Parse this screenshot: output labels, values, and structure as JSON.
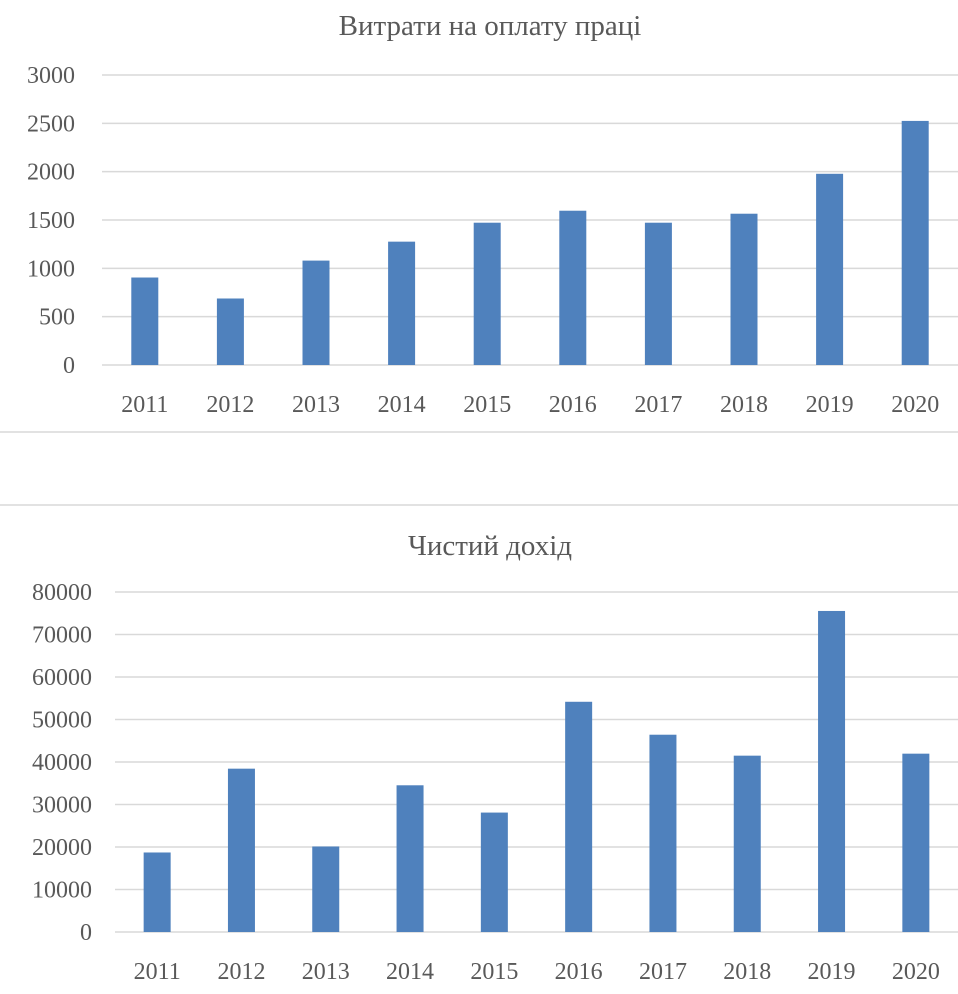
{
  "chart_data": [
    {
      "type": "bar",
      "title": "Витрати на оплату праці",
      "categories": [
        "2011",
        "2012",
        "2013",
        "2014",
        "2015",
        "2016",
        "2017",
        "2018",
        "2019",
        "2020"
      ],
      "values": [
        905,
        688,
        1080,
        1276,
        1472,
        1596,
        1472,
        1565,
        1978,
        2525
      ],
      "yticks": [
        "0",
        "500",
        "1000",
        "1500",
        "2000",
        "2500",
        "3000"
      ],
      "ylim": [
        0,
        3000
      ],
      "xlabel": "",
      "ylabel": "",
      "grid": true,
      "legend": "none",
      "bar_color": "#4F81BD"
    },
    {
      "type": "bar",
      "title": "Чистий дохід",
      "categories": [
        "2011",
        "2012",
        "2013",
        "2014",
        "2015",
        "2016",
        "2017",
        "2018",
        "2019",
        "2020"
      ],
      "values": [
        18710,
        38430,
        20120,
        34520,
        28100,
        54170,
        46420,
        41490,
        75540,
        41960
      ],
      "yticks": [
        "0",
        "10000",
        "20000",
        "30000",
        "40000",
        "50000",
        "60000",
        "70000",
        "80000"
      ],
      "ylim": [
        0,
        80000
      ],
      "xlabel": "",
      "ylabel": "",
      "grid": true,
      "legend": "none",
      "bar_color": "#4F81BD"
    }
  ]
}
